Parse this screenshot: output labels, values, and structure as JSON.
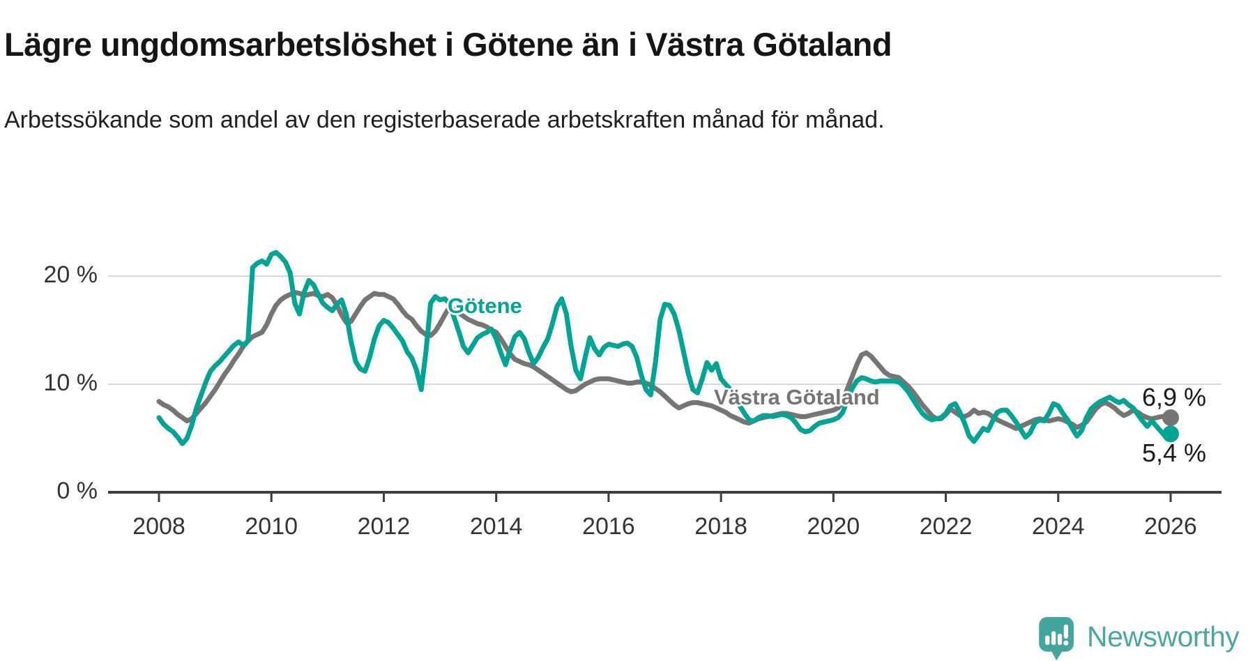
{
  "chart_data": {
    "type": "line",
    "title": "Lägre ungdomsarbetslöshet i Götene än i Västra Götaland",
    "subtitle": "Arbetssökande som andel av den registerbaserade arbetskraften månad för månad.",
    "unit": "%",
    "x_start_year": 2008,
    "x_end_year": 2026,
    "points_per_year": 12,
    "ylim": [
      0,
      23.5
    ],
    "grid": "horizontal-only",
    "gridline_values": [
      10,
      20
    ],
    "y_ticks": [
      {
        "value": 0,
        "label": "0 %"
      },
      {
        "value": 10,
        "label": "10 %"
      },
      {
        "value": 20,
        "label": "20 %"
      }
    ],
    "x_ticks": [
      "2008",
      "2010",
      "2012",
      "2014",
      "2016",
      "2018",
      "2020",
      "2022",
      "2024",
      "2026"
    ],
    "series": [
      {
        "name": "Götene",
        "color": "#00a495",
        "end_label": "5,4 %",
        "end_value": 5.4,
        "values": [
          6.9,
          6.3,
          5.9,
          5.6,
          5.1,
          4.5,
          5.0,
          6.2,
          7.8,
          9.0,
          10.2,
          11.2,
          11.7,
          12.1,
          12.6,
          13.1,
          13.6,
          13.9,
          13.6,
          14.0,
          20.8,
          21.2,
          21.4,
          21.1,
          22.0,
          22.2,
          21.8,
          21.3,
          20.3,
          17.5,
          16.5,
          18.5,
          19.6,
          19.2,
          18.3,
          17.5,
          17.1,
          16.8,
          17.4,
          17.8,
          16.5,
          14.0,
          12.1,
          11.4,
          11.2,
          12.5,
          14.2,
          15.4,
          15.9,
          15.7,
          15.2,
          14.6,
          14.0,
          13.0,
          12.4,
          11.3,
          9.5,
          13.0,
          17.5,
          18.1,
          17.8,
          17.9,
          17.5,
          16.2,
          14.9,
          13.5,
          12.9,
          13.6,
          14.3,
          14.6,
          14.8,
          15.1,
          14.2,
          12.9,
          11.8,
          13.2,
          14.4,
          14.8,
          14.2,
          12.9,
          11.9,
          12.5,
          13.4,
          14.2,
          15.6,
          17.2,
          17.9,
          16.5,
          13.5,
          11.3,
          10.5,
          12.5,
          14.3,
          13.3,
          12.7,
          13.4,
          13.7,
          13.6,
          13.5,
          13.7,
          13.8,
          13.5,
          12.5,
          10.8,
          9.5,
          9.0,
          12.0,
          16.0,
          17.4,
          17.3,
          16.5,
          15.0,
          13.0,
          11.0,
          9.5,
          9.2,
          10.5,
          12.0,
          11.3,
          11.9,
          10.5,
          10.0,
          9.5,
          8.8,
          8.0,
          7.3,
          6.7,
          6.6,
          6.9,
          7.1,
          7.1,
          7.0,
          7.1,
          7.2,
          7.1,
          6.9,
          6.4,
          5.8,
          5.6,
          5.7,
          6.1,
          6.4,
          6.5,
          6.6,
          6.7,
          6.9,
          7.4,
          8.6,
          9.6,
          10.3,
          10.6,
          10.5,
          10.3,
          10.2,
          10.3,
          10.3,
          10.3,
          10.3,
          10.2,
          9.8,
          9.3,
          8.6,
          7.9,
          7.3,
          6.9,
          6.7,
          6.8,
          6.9,
          7.3,
          8.0,
          8.2,
          7.4,
          6.4,
          5.2,
          4.7,
          5.3,
          5.9,
          5.7,
          6.6,
          7.4,
          7.6,
          7.6,
          7.1,
          6.5,
          5.8,
          5.1,
          5.5,
          6.4,
          6.7,
          6.6,
          7.3,
          8.2,
          8.0,
          7.3,
          6.7,
          5.9,
          5.2,
          5.7,
          6.9,
          7.7,
          8.1,
          8.4,
          8.6,
          8.8,
          8.5,
          8.3,
          8.5,
          8.1,
          7.8,
          7.2,
          6.6,
          6.1,
          6.6,
          6.1,
          5.6,
          5.1,
          5.4
        ]
      },
      {
        "name": "Västra Götaland",
        "color": "#757575",
        "end_label": "6,9 %",
        "end_value": 6.9,
        "values": [
          8.4,
          8.1,
          7.9,
          7.6,
          7.2,
          6.9,
          6.6,
          6.8,
          7.3,
          7.8,
          8.3,
          8.9,
          9.5,
          10.2,
          10.9,
          11.5,
          12.2,
          12.8,
          13.5,
          14.0,
          14.4,
          14.6,
          14.8,
          15.5,
          16.5,
          17.3,
          17.8,
          18.1,
          18.3,
          18.5,
          18.4,
          18.2,
          18.3,
          18.4,
          18.2,
          18.1,
          18.3,
          18.0,
          17.3,
          16.4,
          15.7,
          15.8,
          16.5,
          17.2,
          17.8,
          18.1,
          18.4,
          18.3,
          18.3,
          18.1,
          17.9,
          17.4,
          16.8,
          16.3,
          16.0,
          15.4,
          14.9,
          14.6,
          14.5,
          14.9,
          15.6,
          16.4,
          17.1,
          16.9,
          16.6,
          16.3,
          16.0,
          15.8,
          15.6,
          15.5,
          15.3,
          15.0,
          14.8,
          14.2,
          13.5,
          12.8,
          12.3,
          12.1,
          11.9,
          11.8,
          11.6,
          11.3,
          11.0,
          10.7,
          10.4,
          10.1,
          9.8,
          9.5,
          9.3,
          9.4,
          9.7,
          10.0,
          10.2,
          10.4,
          10.5,
          10.5,
          10.5,
          10.4,
          10.3,
          10.2,
          10.1,
          10.1,
          10.2,
          10.2,
          10.1,
          9.9,
          9.6,
          9.3,
          8.9,
          8.5,
          8.1,
          7.8,
          8.0,
          8.2,
          8.3,
          8.3,
          8.2,
          8.1,
          8.0,
          7.8,
          7.6,
          7.4,
          7.1,
          6.9,
          6.7,
          6.5,
          6.4,
          6.6,
          6.8,
          6.9,
          7.0,
          7.1,
          7.2,
          7.3,
          7.3,
          7.2,
          7.1,
          7.0,
          7.0,
          7.1,
          7.2,
          7.3,
          7.4,
          7.5,
          7.6,
          7.8,
          8.4,
          9.6,
          10.7,
          11.8,
          12.7,
          12.9,
          12.6,
          12.1,
          11.6,
          11.1,
          10.8,
          10.7,
          10.6,
          10.2,
          9.8,
          9.3,
          8.7,
          8.1,
          7.6,
          7.1,
          6.8,
          6.8,
          7.2,
          7.7,
          7.4,
          7.1,
          7.0,
          7.2,
          7.6,
          7.3,
          7.4,
          7.3,
          7.0,
          6.7,
          6.5,
          6.3,
          6.1,
          5.9,
          6.1,
          6.3,
          6.5,
          6.7,
          6.8,
          6.7,
          6.6,
          6.7,
          6.8,
          6.7,
          6.5,
          6.3,
          6.0,
          6.2,
          6.5,
          7.1,
          7.7,
          8.1,
          8.3,
          8.1,
          7.8,
          7.4,
          7.1,
          7.3,
          7.6,
          7.4,
          7.1,
          6.9,
          6.8,
          6.9,
          7.0,
          7.0,
          6.9
        ]
      }
    ],
    "legend_position": "inline-labels-on-lines",
    "colors": {
      "gotene": "#00a495",
      "vastra_gotaland": "#757575",
      "gridline": "#d8d8d8",
      "axis": "#3d3d3d",
      "text": "#333333"
    }
  },
  "footer": {
    "brand": "Newsworthy"
  }
}
